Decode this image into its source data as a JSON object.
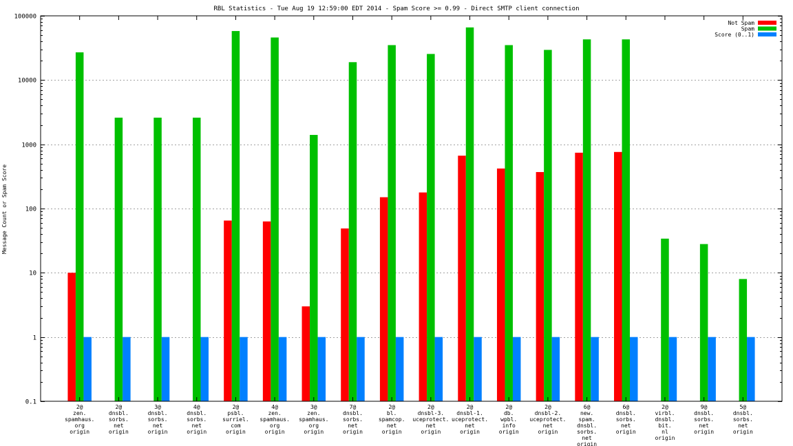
{
  "chart_data": {
    "type": "bar",
    "title": "RBL Statistics - Tue Aug 19 12:59:00 EDT 2014 - Spam Score >= 0.99 - Direct SMTP client connection",
    "xlabel": "",
    "ylabel": "Message Count or Spam Score",
    "yscale": "log",
    "ylim": [
      0.1,
      100000
    ],
    "yticks": [
      "0.1",
      "1",
      "10",
      "100",
      "1000",
      "10000",
      "100000"
    ],
    "grid": true,
    "legend_position": "top-right",
    "categories": [
      [
        "2@",
        "zen.",
        "spamhaus.",
        "org",
        "origin"
      ],
      [
        "2@",
        "dnsbl.",
        "sorbs.",
        "net",
        "origin"
      ],
      [
        "3@",
        "dnsbl.",
        "sorbs.",
        "net",
        "origin"
      ],
      [
        "4@",
        "dnsbl.",
        "sorbs.",
        "net",
        "origin"
      ],
      [
        "2@",
        "psbl.",
        "surriel.",
        "com",
        "origin"
      ],
      [
        "4@",
        "zen.",
        "spamhaus.",
        "org",
        "origin"
      ],
      [
        "3@",
        "zen.",
        "spamhaus.",
        "org",
        "origin"
      ],
      [
        "7@",
        "dnsbl.",
        "sorbs.",
        "net",
        "origin"
      ],
      [
        "2@",
        "bl.",
        "spamcop.",
        "net",
        "origin"
      ],
      [
        "2@",
        "dnsbl-3.",
        "uceprotect.",
        "net",
        "origin"
      ],
      [
        "2@",
        "dnsbl-1.",
        "uceprotect.",
        "net",
        "origin"
      ],
      [
        "2@",
        "db.",
        "wpbl.",
        "info",
        "origin"
      ],
      [
        "2@",
        "dnsbl-2.",
        "uceprotect.",
        "net",
        "origin"
      ],
      [
        "6@",
        "new.",
        "spam.",
        "dnsbl.",
        "sorbs.",
        "net",
        "origin"
      ],
      [
        "6@",
        "dnsbl.",
        "sorbs.",
        "net",
        "origin"
      ],
      [
        "2@",
        "virbl.",
        "dnsbl.",
        "bit.",
        "nl",
        "origin"
      ],
      [
        "9@",
        "dnsbl.",
        "sorbs.",
        "net",
        "origin"
      ],
      [
        "5@",
        "dnsbl.",
        "sorbs.",
        "net",
        "origin"
      ]
    ],
    "series": [
      {
        "name": "Not Spam",
        "color": "#ff0000",
        "values": [
          10,
          null,
          null,
          null,
          65,
          63,
          3,
          49,
          150,
          178,
          665,
          420,
          370,
          740,
          760,
          null,
          null,
          null
        ]
      },
      {
        "name": "Spam",
        "color": "#00c000",
        "values": [
          27000,
          2600,
          2600,
          2600,
          58000,
          46000,
          1400,
          19000,
          35000,
          25500,
          66000,
          35000,
          29500,
          43000,
          43000,
          34,
          28,
          8
        ]
      },
      {
        "name": "Score (0..1)",
        "color": "#0080ff",
        "values": [
          1,
          1,
          1,
          1,
          1,
          1,
          1,
          1,
          1,
          1,
          1,
          1,
          1,
          1,
          1,
          1,
          1,
          1
        ]
      }
    ]
  }
}
